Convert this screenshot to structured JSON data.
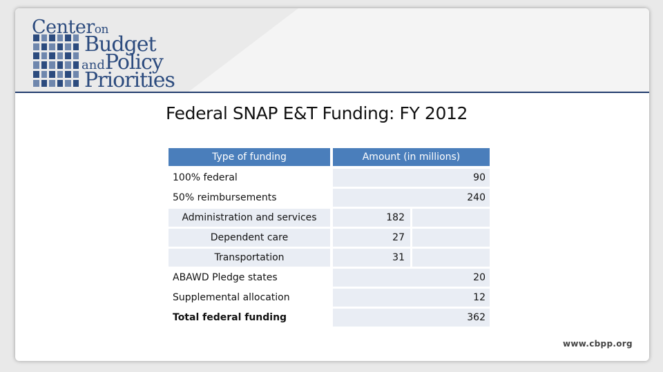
{
  "logo": {
    "line1": "Center",
    "line1_small": "on",
    "line2": "Budget",
    "line3_small": "and",
    "line3": "Policy",
    "line4": "Priorities"
  },
  "title": "Federal SNAP E&T Funding:  FY 2012",
  "table": {
    "headers": [
      "Type of funding",
      "Amount (in millions)"
    ],
    "rows": [
      {
        "label": "100% federal",
        "amount": "90"
      },
      {
        "label": "50% reimbursements",
        "amount": "240"
      },
      {
        "label": "Administration and services",
        "sub_amount": "182"
      },
      {
        "label": "Dependent care",
        "sub_amount": "27"
      },
      {
        "label": "Transportation",
        "sub_amount": "31"
      },
      {
        "label": "ABAWD Pledge states",
        "amount": "20"
      },
      {
        "label": "Supplemental allocation",
        "amount": "12"
      },
      {
        "label": "Total federal funding",
        "amount": "362"
      }
    ]
  },
  "footer_url": "www.cbpp.org",
  "colors": {
    "brand_navy": "#2c4b7e",
    "header_fill": "#4a7ebb",
    "row_shade": "#e9edf4"
  }
}
